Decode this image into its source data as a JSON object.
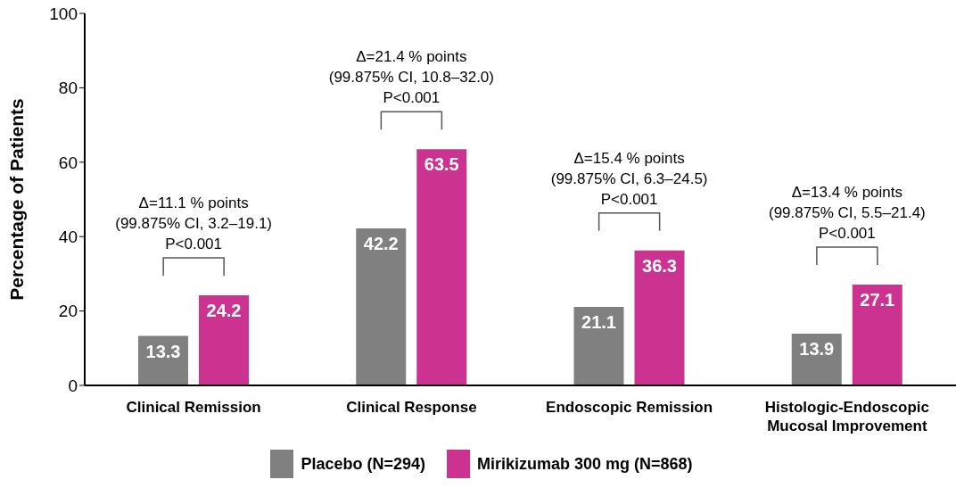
{
  "chart_data": {
    "type": "bar",
    "ylabel": "Percentage of Patients",
    "categories": [
      "Clinical Remission",
      "Clinical Response",
      "Endoscopic Remission",
      "Histologic-Endoscopic Mucosal Improvement"
    ],
    "series": [
      {
        "name": "Placebo (N=294)",
        "color": "#808080",
        "values": [
          13.3,
          42.2,
          21.1,
          13.9
        ]
      },
      {
        "name": "Mirikizumab 300 mg (N=868)",
        "color": "#cc3391",
        "values": [
          24.2,
          63.5,
          36.3,
          27.1
        ]
      }
    ],
    "ylim": [
      0,
      100
    ],
    "yticks": [
      0,
      20,
      40,
      60,
      80,
      100
    ],
    "grid": false,
    "legend": "bottom",
    "data_labels": true,
    "annotations": [
      "Δ=11.1 % points\n(99.875% CI, 3.2–19.1)\nP<0.001",
      "Δ=21.4 % points\n(99.875% CI, 10.8–32.0)\nP<0.001",
      "Δ=15.4 % points\n(99.875% CI, 6.3–24.5)\nP<0.001",
      "Δ=13.4 % points\n(99.875% CI, 5.5–21.4)\nP<0.001"
    ]
  }
}
